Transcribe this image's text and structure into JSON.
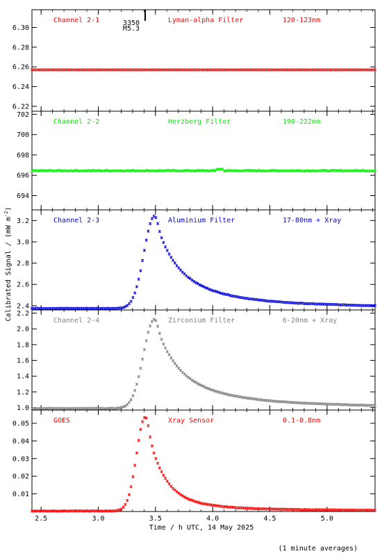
{
  "footer_note": "(1 minute averages)",
  "ylabel": "Calibrated Signal / (mW m",
  "ylabel_sup": "-2",
  "ylabel_end": ")",
  "xlabel": "Time / h UTC, 14 May 2025",
  "chart_data": {
    "type": "scatter",
    "xlim": [
      2.42,
      5.42
    ],
    "xticks": [
      2.5,
      3.0,
      3.5,
      4.0,
      4.5,
      5.0
    ],
    "xtick_labels": [
      "2.5",
      "3.0",
      "3.5",
      "4.0",
      "4.5",
      "5.0"
    ],
    "panels": [
      {
        "name": "Channel 2-1",
        "filter": "Lyman-alpha Filter",
        "band": "120-123nm",
        "color": "#ff0000",
        "ylim": [
          6.215,
          6.318
        ],
        "yticks": [
          6.22,
          6.24,
          6.26,
          6.28,
          6.3
        ],
        "ytick_labels": [
          "6.22",
          "6.24",
          "6.26",
          "6.28",
          "6.30"
        ],
        "marker": {
          "x": 3.41,
          "labels": [
            "3350",
            "M5.3"
          ]
        },
        "series": {
          "kind": "flat",
          "base": 6.257,
          "noise": 0
        }
      },
      {
        "name": "Channel 2-2",
        "filter": "Herzberg Filter",
        "band": "190-222nm",
        "color": "#00ee00",
        "ylim": [
          692.6,
          702.3
        ],
        "yticks": [
          694,
          696,
          698,
          700,
          702
        ],
        "ytick_labels": [
          "694",
          "696",
          "698",
          "700",
          "702"
        ],
        "series": {
          "kind": "flat",
          "base": 696.45,
          "noise": 0.04,
          "bump_x": 4.06,
          "bump": 0.15
        }
      },
      {
        "name": "Channel 2-3",
        "filter": "Aluminium Filter",
        "band": "17-80nm + Xray",
        "color": "#0000dd",
        "ylim": [
          2.36,
          3.3
        ],
        "yticks": [
          2.4,
          2.6,
          2.8,
          3.0,
          3.2
        ],
        "ytick_labels": [
          "2.4",
          "2.6",
          "2.8",
          "3.0",
          "3.2"
        ],
        "series": {
          "kind": "flare",
          "base": 2.375,
          "late": 2.39,
          "peak": 3.24,
          "peak_x": 3.49,
          "rise": 0.09,
          "decay1": 0.16,
          "decay2": 0.55,
          "frac1": 0.58
        }
      },
      {
        "name": "Channel 2-4",
        "filter": "Zirconium Filter",
        "band": "6-20nm + Xray",
        "color": "#808080",
        "ylim": [
          0.97,
          2.24
        ],
        "yticks": [
          1.0,
          1.2,
          1.4,
          1.6,
          1.8,
          2.0,
          2.2
        ],
        "ytick_labels": [
          "1.0",
          "1.2",
          "1.4",
          "1.6",
          "1.8",
          "2.0",
          "2.2"
        ],
        "series": {
          "kind": "flare",
          "base": 0.99,
          "late": 1.01,
          "peak": 2.12,
          "peak_x": 3.49,
          "rise": 0.095,
          "decay1": 0.17,
          "decay2": 0.6,
          "frac1": 0.6
        }
      },
      {
        "name": "GOES",
        "filter": "Xray Sensor",
        "band": "0.1-0.8nm",
        "color": "#ff0000",
        "ylim": [
          0.0,
          0.0575
        ],
        "yticks": [
          0.01,
          0.02,
          0.03,
          0.04,
          0.05
        ],
        "ytick_labels": [
          "0.01",
          "0.02",
          "0.03",
          "0.04",
          "0.05"
        ],
        "series": {
          "kind": "flare",
          "base": 0.0003,
          "late": 0.0006,
          "peak": 0.0535,
          "peak_x": 3.41,
          "rise": 0.075,
          "decay1": 0.14,
          "decay2": 0.5,
          "frac1": 0.85
        }
      }
    ]
  }
}
